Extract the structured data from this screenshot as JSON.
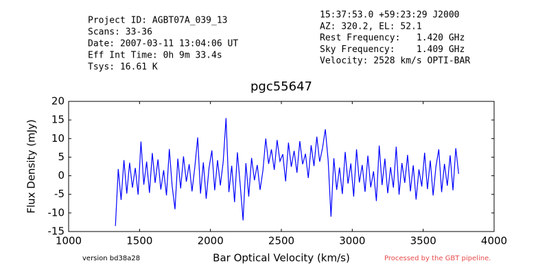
{
  "chart_data": {
    "type": "line",
    "title": "pgc55647",
    "xlabel": "Bar Optical Velocity (km/s)",
    "ylabel": "Flux Density (mJy)",
    "header_left": [
      "Project ID: AGBT07A_039_13",
      "Scans: 33-36",
      "Date: 2007-03-11 13:04:06 UT",
      "Eff Int Time: 0h 9m 33.4s",
      "Tsys: 16.61 K"
    ],
    "header_right": [
      "15:37:53.0 +59:23:29 J2000",
      "AZ: 320.2, EL: 52.1",
      "Rest Frequency:   1.420 GHz",
      "Sky Frequency:    1.409 GHz",
      "Velocity: 2528 km/s OPTI-BAR"
    ],
    "footer_left": "version bd38a28",
    "footer_right": "Processed by the GBT pipeline.",
    "xlim": [
      1000,
      4000
    ],
    "xticks": [
      1000,
      1500,
      2000,
      2500,
      3000,
      3500,
      4000
    ],
    "ylim": [
      -15,
      20
    ],
    "yticks": [
      -15,
      -10,
      -5,
      0,
      5,
      10,
      15,
      20
    ],
    "color": "#0000ff",
    "x": [
      1330,
      1350,
      1370,
      1390,
      1410,
      1430,
      1450,
      1470,
      1490,
      1510,
      1530,
      1550,
      1570,
      1590,
      1610,
      1630,
      1650,
      1670,
      1690,
      1710,
      1730,
      1750,
      1770,
      1790,
      1810,
      1830,
      1850,
      1870,
      1890,
      1910,
      1930,
      1950,
      1970,
      1990,
      2010,
      2030,
      2050,
      2070,
      2090,
      2110,
      2130,
      2150,
      2170,
      2190,
      2210,
      2230,
      2250,
      2270,
      2290,
      2310,
      2330,
      2350,
      2370,
      2390,
      2410,
      2430,
      2450,
      2470,
      2490,
      2510,
      2530,
      2550,
      2570,
      2590,
      2610,
      2630,
      2650,
      2670,
      2690,
      2710,
      2730,
      2750,
      2770,
      2790,
      2810,
      2830,
      2850,
      2870,
      2890,
      2910,
      2930,
      2950,
      2970,
      2990,
      3010,
      3030,
      3050,
      3070,
      3090,
      3110,
      3130,
      3150,
      3170,
      3190,
      3210,
      3230,
      3250,
      3270,
      3290,
      3310,
      3330,
      3350,
      3370,
      3390,
      3410,
      3430,
      3450,
      3470,
      3490,
      3510,
      3530,
      3550,
      3570,
      3590,
      3610,
      3630,
      3650,
      3670,
      3690,
      3710,
      3730,
      3750
    ],
    "values": [
      -13.5,
      1.8,
      -6.5,
      4.2,
      -4.8,
      3.5,
      -3.2,
      2.1,
      -5.1,
      9.2,
      -2.4,
      3.8,
      -4.6,
      6.1,
      -1.9,
      4.4,
      -3.7,
      1.5,
      -5.3,
      7.2,
      -2.8,
      -9,
      4.6,
      -3.4,
      5.2,
      -1.6,
      3.1,
      -4.2,
      2.4,
      10.3,
      -4.8,
      3.6,
      -6.2,
      2.1,
      6.8,
      -3.9,
      4.2,
      -2.6,
      3.8,
      15.5,
      -4.4,
      2.7,
      -7.1,
      6.3,
      -2.5,
      -12,
      3.4,
      -5.6,
      4.8,
      -1.2,
      2.9,
      -3.8,
      1.4,
      10,
      3.2,
      7.1,
      1.6,
      9.6,
      3.9,
      5.8,
      -1.5,
      8.9,
      2.4,
      6.7,
      0.8,
      9.3,
      3.1,
      5.9,
      -0.6,
      8.2,
      2.6,
      10.5,
      3.8,
      7.4,
      12.5,
      4.1,
      -11,
      4.7,
      -3.8,
      2.2,
      -4.9,
      6.4,
      -2.1,
      3.3,
      -5.6,
      7.1,
      -1.8,
      2.9,
      -4.3,
      5.4,
      -3.1,
      1.2,
      -6.8,
      8.1,
      -2.5,
      4.6,
      -4.7,
      2.3,
      -3.2,
      7.8,
      -5.1,
      3.4,
      -1.9,
      5.6,
      -4.2,
      2.8,
      -6.4,
      1.7,
      -2.9,
      6.2,
      -3.6,
      4.1,
      -5.3,
      2.5,
      7.1,
      -4.4,
      3.2,
      -2.7,
      5.5,
      -3.9,
      7.4,
      0.5
    ]
  }
}
